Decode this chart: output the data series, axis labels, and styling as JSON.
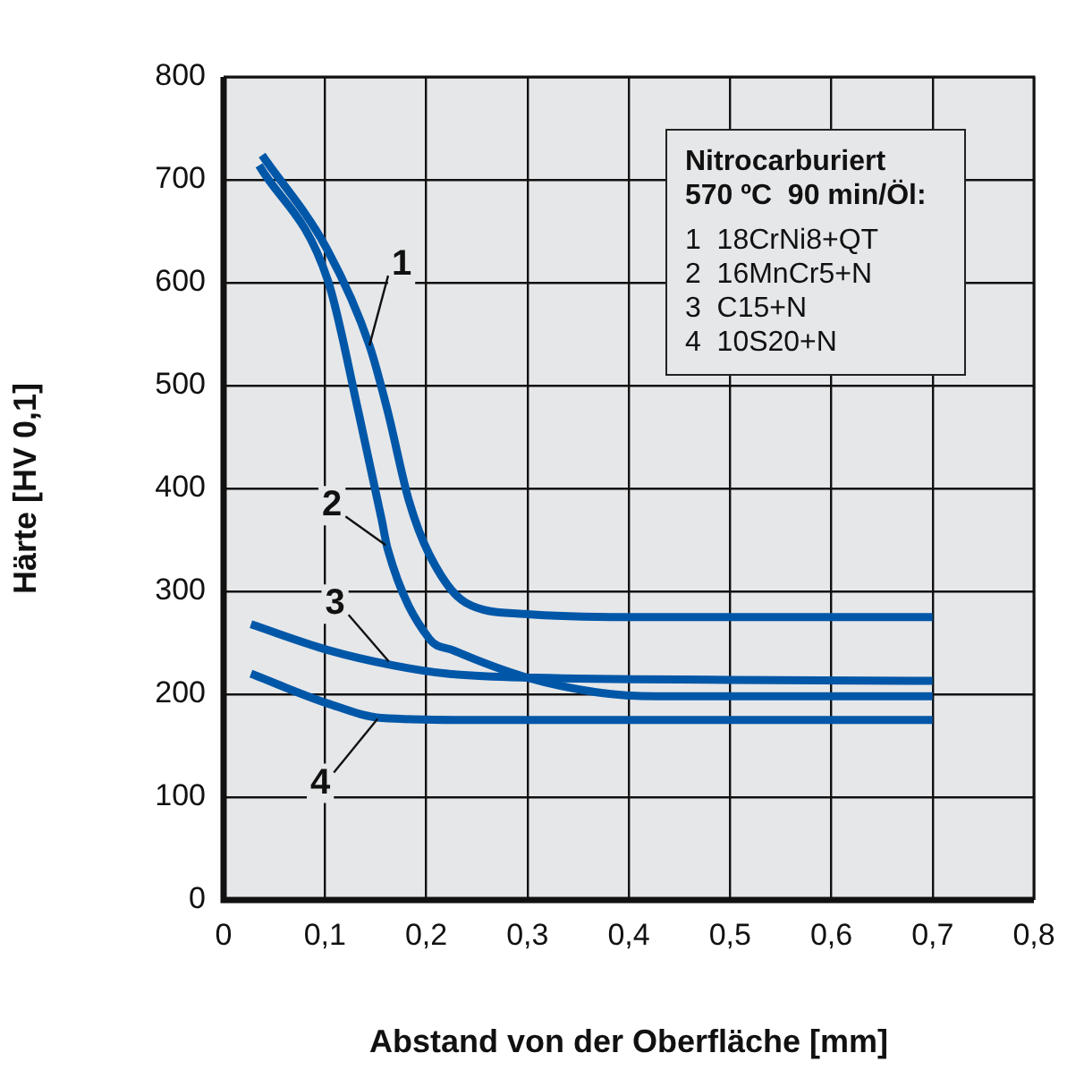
{
  "chart_data": {
    "type": "line",
    "xlabel": "Abstand von der Oberfläche [mm]",
    "ylabel": "Härte [HV 0,1]",
    "grid": true,
    "marker": "none",
    "line_style": "solid",
    "xlim": [
      0,
      0.8
    ],
    "xticks": [
      {
        "value": 0,
        "label": "0"
      },
      {
        "value": 0.1,
        "label": "0,1"
      },
      {
        "value": 0.2,
        "label": "0,2"
      },
      {
        "value": 0.3,
        "label": "0,3"
      },
      {
        "value": 0.4,
        "label": "0,4"
      },
      {
        "value": 0.5,
        "label": "0,5"
      },
      {
        "value": 0.6,
        "label": "0,6"
      },
      {
        "value": 0.7,
        "label": "0,7"
      },
      {
        "value": 0.8,
        "label": "0,8"
      }
    ],
    "ylim": [
      0,
      800
    ],
    "yticks": [
      0,
      100,
      200,
      300,
      400,
      500,
      600,
      700,
      800
    ],
    "series": [
      {
        "color": "#0057a8",
        "x": [
          0.038,
          0.103,
          0.144,
          0.162,
          0.183,
          0.203,
          0.239,
          0.297,
          0.4,
          0.55,
          0.7
        ],
        "values": [
          724,
          631,
          539,
          475,
          388,
          336,
          289,
          278,
          275,
          275,
          275
        ]
      },
      {
        "color": "#0057a8",
        "x": [
          0.035,
          0.103,
          0.133,
          0.156,
          0.162,
          0.203,
          0.226,
          0.297,
          0.368,
          0.427,
          0.55,
          0.7
        ],
        "values": [
          714,
          602,
          475,
          370,
          341,
          254,
          243,
          217,
          202,
          198,
          198,
          198
        ]
      },
      {
        "color": "#0057a8",
        "x": [
          0.027,
          0.103,
          0.168,
          0.221,
          0.309,
          0.5,
          0.7
        ],
        "values": [
          268,
          243,
          228,
          220,
          216,
          214,
          213
        ]
      },
      {
        "color": "#0057a8",
        "x": [
          0.027,
          0.103,
          0.156,
          0.25,
          0.4,
          0.7
        ],
        "values": [
          220,
          191,
          177,
          175,
          175,
          175
        ]
      }
    ],
    "annotations": [
      "Nitrocarburiert\n570 ºC  90 min/Öl:",
      "1  18CrNi8+QT",
      "2  16MnCr5+N",
      "3  C15+N",
      "4  10S20+N",
      {
        "text": "1",
        "x": 0.144,
        "y": 539
      },
      {
        "text": "2",
        "x": 0.16,
        "y": 345
      },
      {
        "text": "3",
        "x": 0.163,
        "y": 232
      },
      {
        "text": "4",
        "x": 0.152,
        "y": 176
      }
    ]
  }
}
